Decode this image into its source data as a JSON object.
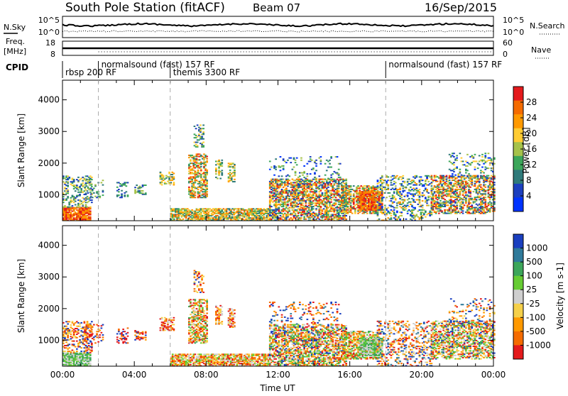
{
  "header": {
    "station": "South Pole Station (fitACF)",
    "beam": "Beam 07",
    "date": "16/Sep/2015"
  },
  "top_panels": {
    "nsky_label": "N.Sky",
    "nsky_ticks": [
      "10^5",
      "10^0"
    ],
    "nsearch_label": "N.Search",
    "nsearch_ticks": [
      "10^5",
      "10^0"
    ],
    "freq_label_1": "Freq.",
    "freq_label_2": "[MHz]",
    "freq_ticks": [
      "18",
      "8"
    ],
    "nave_label": "Nave",
    "nave_ticks": [
      "60",
      "0"
    ],
    "cpid_label": "CPID",
    "cpid_segments": [
      {
        "label": "rbsp 200 RF",
        "start": 0,
        "row": 1
      },
      {
        "label": "normalsound (fast) 157 RF",
        "start": 2,
        "row": 0
      },
      {
        "label": "themis 3300 RF",
        "start": 6,
        "row": 1
      },
      {
        "label": "normalsound (fast) 157 RF",
        "start": 18,
        "row": 0
      }
    ]
  },
  "chart_data": [
    {
      "type": "heatmap",
      "panel": "power",
      "ylabel": "Slant Range [km]",
      "yticks": [
        1000,
        2000,
        3000,
        4000
      ],
      "ylim": [
        180,
        4620
      ],
      "xlim": [
        0,
        24
      ],
      "colorbar_label": "Power [dB]",
      "colorbar_ticks": [
        "28",
        "24",
        "20",
        "16",
        "12",
        "8",
        "4"
      ],
      "colors": [
        "#e41a1c",
        "#f56b00",
        "#ff9900",
        "#ffcc33",
        "#a6c24a",
        "#3ca65a",
        "#2f7a7a",
        "#1c3fbf",
        "#0033ff"
      ]
    },
    {
      "type": "heatmap",
      "panel": "velocity",
      "ylabel": "Slant Range [km]",
      "yticks": [
        1000,
        2000,
        3000,
        4000
      ],
      "ylim": [
        180,
        4620
      ],
      "xlim": [
        0,
        24
      ],
      "xlabel": "Time UT",
      "xticks": [
        "00:00",
        "04:00",
        "08:00",
        "12:00",
        "16:00",
        "20:00",
        "00:00"
      ],
      "colorbar_label": "Velocity [m s-1]",
      "colorbar_ticks": [
        "1000",
        "500",
        "100",
        "25",
        "-25",
        "-100",
        "-500",
        "-1000"
      ],
      "colors": [
        "#1a3fbf",
        "#2f7a9a",
        "#3ca65a",
        "#66cc33",
        "#cfcfcf",
        "#f5d04a",
        "#ff9900",
        "#f56b00",
        "#e41a1c"
      ]
    }
  ]
}
